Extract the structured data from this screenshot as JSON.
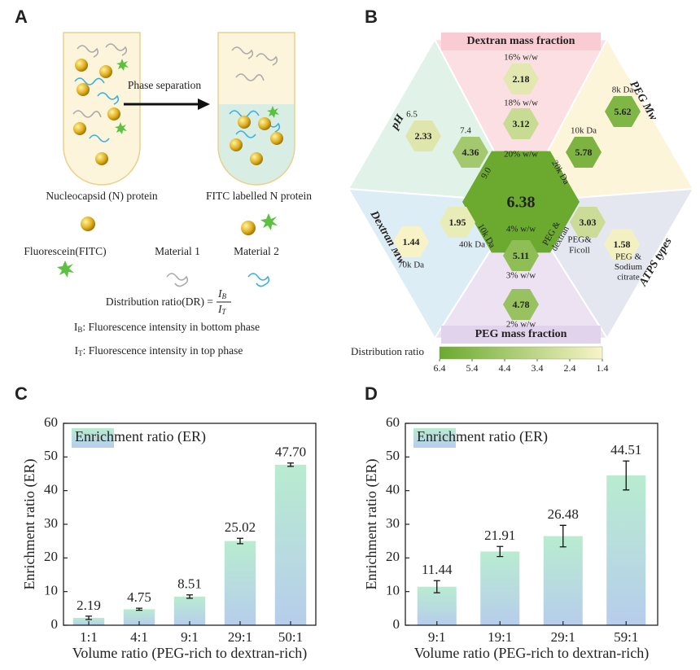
{
  "panel_a": {
    "label": "A",
    "arrow_label": "Phase separation",
    "n_protein": "Nucleocapsid (N) protein",
    "fitc_n_protein": "FITC labelled N protein",
    "fitc": "Fluorescein(FITC)",
    "material_1": "Material 1",
    "material_2": "Material 2",
    "formula": {
      "text": "Distribution ratio(DR) =",
      "numerator": {
        "symbol": "I",
        "sub": "B"
      },
      "denominator": {
        "symbol": "I",
        "sub": "T"
      }
    },
    "legend_bottom": {
      "symbol": "I",
      "sub": "B",
      "text": ": Fluorescence intensity in bottom phase"
    },
    "legend_top": {
      "symbol": "I",
      "sub": "T",
      "text": ": Fluorescence intensity in top phase"
    }
  },
  "panel_b": {
    "label": "B",
    "center_value": 6.38,
    "sections": [
      {
        "title": "Dextran mass fraction",
        "items": [
          {
            "level": "16% w/w",
            "value": 2.18
          },
          {
            "level": "18% w/w",
            "value": 3.12
          }
        ],
        "center_level": "20% w/w"
      },
      {
        "title": "PEG Mw",
        "items": [
          {
            "level": "8k Da",
            "value": 5.62
          },
          {
            "level": "10k Da",
            "value": 5.78
          }
        ],
        "center_level": "20k Da"
      },
      {
        "title": "ATPS types",
        "items": [
          {
            "level": [
              "PEG&",
              "Ficoll"
            ],
            "value": 3.03
          },
          {
            "level": [
              "PEG &",
              "Sodium",
              "citrate"
            ],
            "value": 1.58
          }
        ],
        "center_level": [
          "PEG &",
          "dextran"
        ]
      },
      {
        "title": "PEG mass fraction",
        "items": [
          {
            "level": "2% w/w",
            "value": 4.78
          },
          {
            "level": "3% w/w",
            "value": 5.11
          }
        ],
        "center_level": "4% w/w"
      },
      {
        "title": "Dextran Mw",
        "items": [
          {
            "level": "70k Da",
            "value": 1.44
          },
          {
            "level": "40k Da",
            "value": 1.95
          }
        ],
        "center_level": "10k Da"
      },
      {
        "title": "pH",
        "items": [
          {
            "level": "6.5",
            "value": 2.33
          },
          {
            "level": "7.4",
            "value": 4.36
          }
        ],
        "center_level": "9.0"
      }
    ],
    "colorbar": {
      "label": "Distribution ratio",
      "range": [
        6.4,
        1.4
      ],
      "ticks": [
        6.4,
        5.4,
        4.4,
        3.4,
        2.4,
        1.4
      ],
      "colors": [
        "#6aaa2e",
        "#f8f4c8"
      ]
    }
  },
  "chart_data": [
    {
      "type": "bar",
      "panel": "C",
      "xlabel": "Volume ratio (PEG-rich to dextran-rich)",
      "ylabel": "Enrichment ratio (ER)",
      "categories": [
        "1:1",
        "4:1",
        "9:1",
        "29:1",
        "50:1"
      ],
      "series": [
        {
          "name": "Enrichment ratio (ER)",
          "colors": [
            "#b8ecd0",
            "#b7cdec"
          ],
          "values": [
            2.19,
            4.75,
            8.51,
            25.02,
            47.7
          ],
          "value_labels": [
            "2.19",
            "4.75",
            "8.51",
            "25.02",
            "47.70"
          ],
          "errors": [
            0.5,
            0.3,
            0.5,
            0.8,
            0.5
          ]
        }
      ],
      "ylim": [
        0,
        60
      ],
      "yticks": [
        0,
        10,
        20,
        30,
        40,
        50,
        60
      ]
    },
    {
      "type": "bar",
      "panel": "D",
      "xlabel": "Volume ratio (PEG-rich to dextran-rich)",
      "ylabel": "Enrichment ratio (ER)",
      "categories": [
        "9:1",
        "19:1",
        "29:1",
        "59:1"
      ],
      "series": [
        {
          "name": "Enrichment ratio (ER)",
          "colors": [
            "#b8ecd0",
            "#b7cdec"
          ],
          "values": [
            11.44,
            21.91,
            26.48,
            44.51
          ],
          "errors": [
            1.8,
            1.5,
            3.2,
            4.3
          ]
        }
      ],
      "ylim": [
        0,
        60
      ],
      "yticks": [
        0,
        10,
        20,
        30,
        40,
        50,
        60
      ]
    }
  ]
}
